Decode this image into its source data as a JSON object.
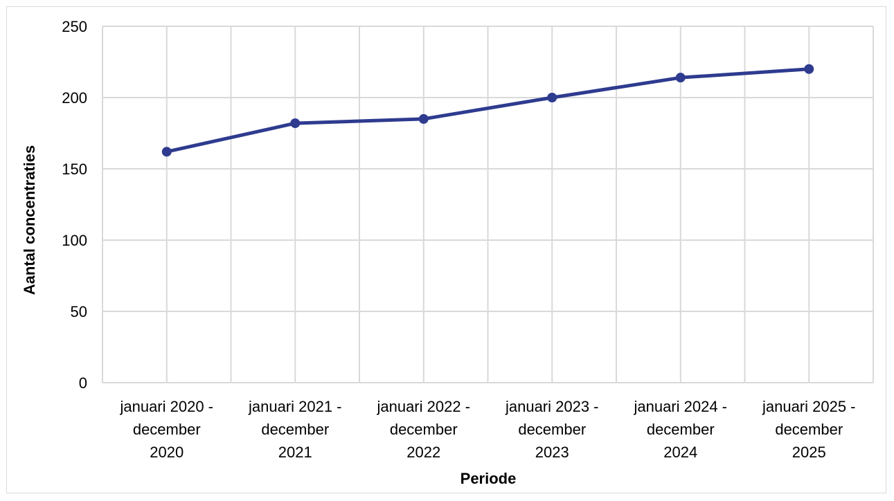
{
  "chart_data": {
    "type": "line",
    "categories": [
      [
        "januari 2020 -",
        "december",
        "2020"
      ],
      [
        "januari 2021 -",
        "december",
        "2021"
      ],
      [
        "januari 2022 -",
        "december",
        "2022"
      ],
      [
        "januari 2023 -",
        "december",
        "2023"
      ],
      [
        "januari 2024 -",
        "december",
        "2024"
      ],
      [
        "januari 2025 -",
        "december",
        "2025"
      ]
    ],
    "series": [
      {
        "values": [
          162,
          182,
          185,
          200,
          214,
          220
        ],
        "color": "#2e3b8f"
      }
    ],
    "title": "",
    "xlabel": "Periode",
    "ylabel": "Aantal concentraties",
    "ylim": [
      0,
      250
    ],
    "yticks": [
      0,
      50,
      100,
      150,
      200,
      250
    ],
    "grid": true,
    "legend": "none"
  }
}
